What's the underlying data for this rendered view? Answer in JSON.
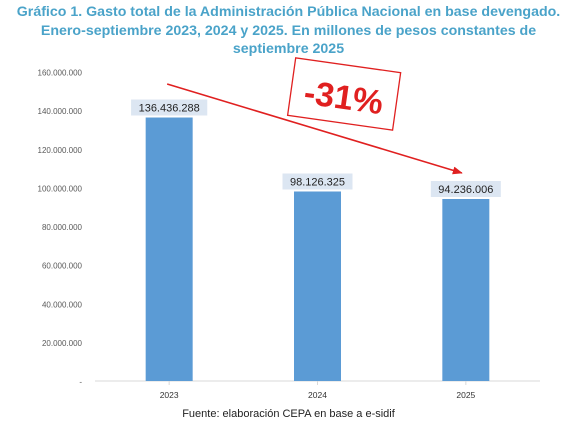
{
  "title_lines": [
    "Gráfico 1. Gasto total de la Administración Pública Nacional en base devengado.",
    "Enero-septiembre 2023, 2024 y 2025. En millones de pesos constantes de",
    "septiembre 2025"
  ],
  "source": "Fuente: elaboración CEPA en base a e-sidif",
  "colors": {
    "title": "#4aa3c9",
    "bar": "#5b9bd5",
    "data_label_bg": "#dce6f2",
    "trend_arrow": "#e02020",
    "annotation": "#e02020",
    "grid": "#d9d9d9"
  },
  "chart_data": {
    "type": "bar",
    "categories": [
      "2023",
      "2024",
      "2025"
    ],
    "values": [
      136436288,
      98126325,
      94236006
    ],
    "data_labels": [
      "136.436.288",
      "98.126.325",
      "94.236.006"
    ],
    "y_ticks": [
      0,
      20000000,
      40000000,
      60000000,
      80000000,
      100000000,
      120000000,
      140000000,
      160000000
    ],
    "y_tick_labels": [
      "-",
      "20.000.000",
      "40.000.000",
      "60.000.000",
      "80.000.000",
      "100.000.000",
      "120.000.000",
      "140.000.000",
      "160.000.000"
    ],
    "ylim": [
      0,
      160000000
    ],
    "grid": false,
    "annotation": {
      "text": "-31%",
      "from_category": "2023",
      "to_category": "2025"
    }
  }
}
